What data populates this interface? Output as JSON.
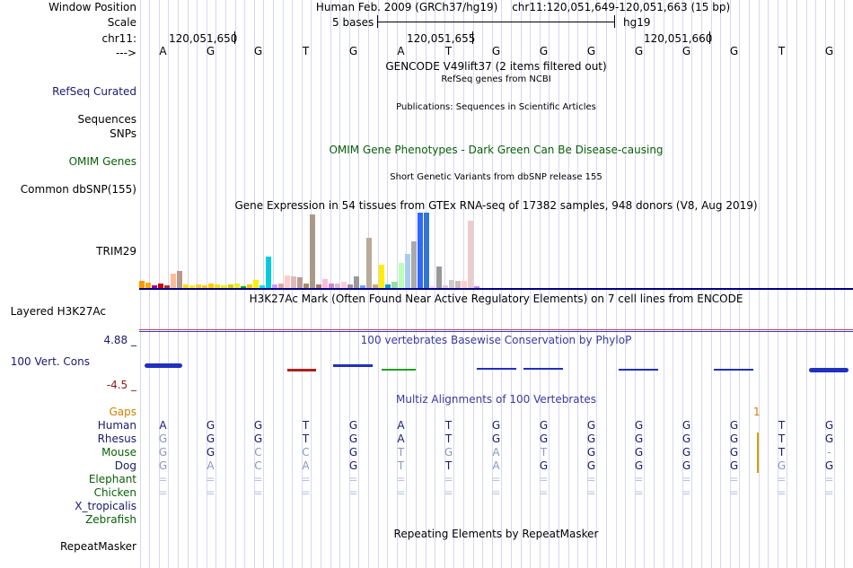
{
  "labels": {
    "window_position": "Window Position",
    "scale": "Scale",
    "chrom": "chr11:",
    "strand": "--->",
    "refseq": "RefSeq Curated",
    "sequences": "Sequences",
    "snps": "SNPs",
    "omim": "OMIM Genes",
    "dbsnp": "Common dbSNP(155)",
    "gene_expr": "TRIM29",
    "h3k27ac": "Layered H3K27Ac",
    "cons_max": "4.88 _",
    "cons_name": "100 Vert. Cons",
    "cons_min": "-4.5 _",
    "gaps": "Gaps",
    "species": [
      "Human",
      "Rhesus",
      "Mouse",
      "Dog",
      "Elephant",
      "Chicken",
      "X_tropicalis",
      "Zebrafish"
    ],
    "repeatmasker": "RepeatMasker"
  },
  "header": {
    "assembly": "Human Feb. 2009 (GRCh37/hg19)",
    "position": "chr11:120,051,649-120,051,663 (15 bp)",
    "scale_text": "5 bases",
    "scale_db": "hg19",
    "coords": [
      "120,051,650",
      "120,051,655",
      "120,051,660"
    ]
  },
  "sequence": [
    "A",
    "G",
    "G",
    "T",
    "G",
    "A",
    "T",
    "G",
    "G",
    "G",
    "G",
    "G",
    "G",
    "T",
    "G"
  ],
  "titles": {
    "gencode": "GENCODE V49lift37 (2 items filtered out)",
    "refseq": "RefSeq genes from NCBI",
    "publications": "Publications: Sequences in Scientific Articles",
    "omim": "OMIM Gene Phenotypes - Dark Green Can Be Disease-causing",
    "dbsnp": "Short Genetic Variants from dbSNP release 155",
    "gtex": "Gene Expression in 54 tissues from GTEx RNA-seq of 17382 samples, 948 donors (V8, Aug 2019)",
    "h3k27ac": "H3K27Ac Mark (Often Found Near Active Regulatory Elements) on 7 cell lines from ENCODE",
    "phylop": "100 vertebrates Basewise Conservation by PhyloP",
    "multiz": "Multiz Alignments of 100 Vertebrates",
    "repeatmasker": "Repeating Elements by RepeatMasker"
  },
  "gtex_values": [
    8,
    6,
    3,
    5,
    3,
    16,
    19,
    4,
    3,
    4,
    3,
    5,
    4,
    3,
    4,
    5,
    2,
    4,
    9,
    3,
    35,
    4,
    5,
    14,
    13,
    12,
    5,
    82,
    4,
    10,
    5,
    5,
    7,
    4,
    13,
    3,
    56,
    4,
    26,
    4,
    7,
    28,
    38,
    52,
    84,
    84,
    2,
    24,
    3,
    9,
    8,
    8,
    75,
    2
  ],
  "gtex_colors": [
    "#ff9900",
    "#ffaa00",
    "#990099",
    "#cc0000",
    "#aa3333",
    "#ffbb99",
    "#bb9988",
    "#ffdd00",
    "#ffee00",
    "#ffcc33",
    "#ffcc00",
    "#ffcc00",
    "#ffdd00",
    "#eeee00",
    "#ddcc00",
    "#eeee22",
    "#00aa00",
    "#eecc00",
    "#ffee00",
    "#00ddee",
    "#00ccdd",
    "#cc99ff",
    "#ddaa99",
    "#ffcccc",
    "#ddbbbb",
    "#bb9999",
    "#aa8866",
    "#aa9988",
    "#aa7766",
    "#ffbbdd",
    "#cc88cc",
    "#ddbbcc",
    "#ffccdd",
    "#aa8899",
    "#999999",
    "#7799ff",
    "#bbaa99",
    "#ccaa77",
    "#ffee00",
    "#0099cc",
    "#99ddaa",
    "#bbffbb",
    "#aaccee",
    "#aaaaaa",
    "#3366ff",
    "#3377cc",
    "#ffccff",
    "#999999",
    "#ddcccc",
    "#cccccc",
    "#ccbbbb",
    "#ffcccc",
    "#eecccc",
    "#bb88ff"
  ],
  "alignments": [
    {
      "species": "Human",
      "bases": [
        "A",
        "G",
        "G",
        "T",
        "G",
        "A",
        "T",
        "G",
        "G",
        "G",
        "G",
        "G",
        "G",
        "T",
        "G"
      ]
    },
    {
      "species": "Rhesus",
      "bases": [
        "G",
        "G",
        "G",
        "T",
        "G",
        "A",
        "T",
        "G",
        "G",
        "G",
        "G",
        "G",
        "G",
        "T",
        "G"
      ]
    },
    {
      "species": "Mouse",
      "bases": [
        "G",
        "G",
        "C",
        "C",
        "G",
        "T",
        "G",
        "A",
        "T",
        "G",
        "G",
        "G",
        "G",
        "T",
        "-"
      ]
    },
    {
      "species": "Dog",
      "bases": [
        "G",
        "A",
        "C",
        "A",
        "G",
        "T",
        "T",
        "A",
        "G",
        "G",
        "G",
        "G",
        "G",
        "G",
        "G"
      ]
    },
    {
      "species": "Elephant",
      "bases": [
        "=",
        "=",
        "=",
        "=",
        "=",
        "=",
        "=",
        "=",
        "=",
        "=",
        "=",
        "=",
        "=",
        "=",
        "="
      ]
    },
    {
      "species": "Chicken",
      "bases": [
        "=",
        "=",
        "=",
        "=",
        "=",
        "=",
        "=",
        "=",
        "=",
        "=",
        "=",
        "=",
        "=",
        "=",
        "="
      ]
    }
  ],
  "gaps_value": "1",
  "colors": {
    "accent": "#1a1a70",
    "ruler_line": "#000080",
    "phylop_pos": "#2030c0",
    "phylop_neg": "#b02020",
    "omim": "#0a600a",
    "gaps": "#d08000"
  }
}
